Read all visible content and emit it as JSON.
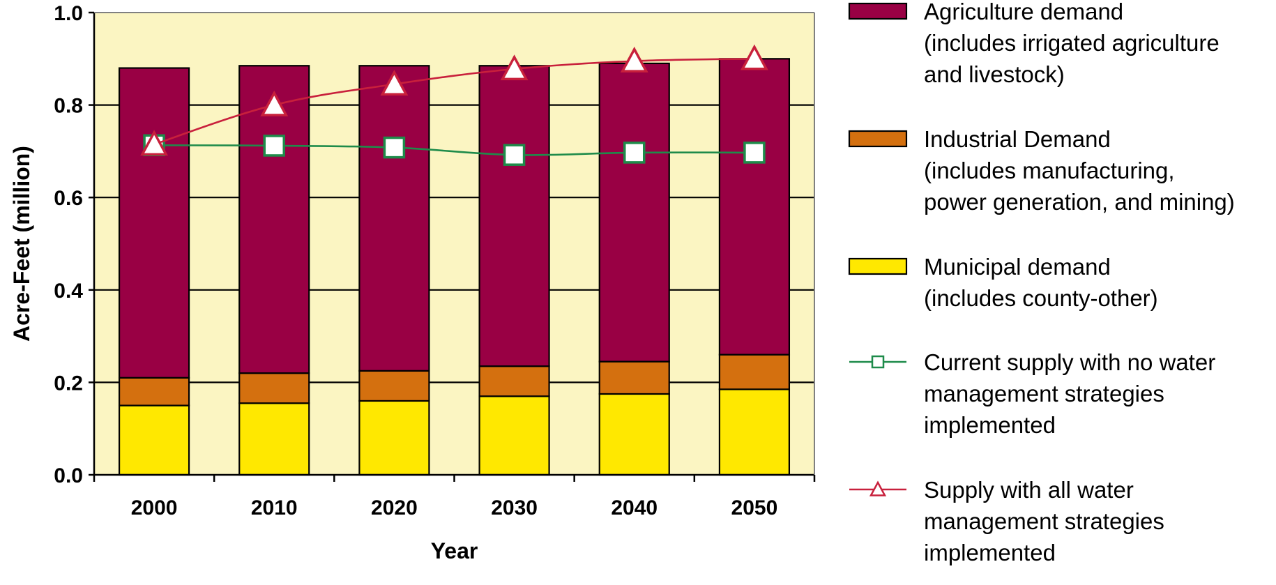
{
  "chart_data": {
    "type": "bar",
    "stacked": true,
    "xlabel": "Year",
    "ylabel": "Acre-Feet (million)",
    "ylim": [
      0.0,
      1.0
    ],
    "yticks": [
      "0.0",
      "0.2",
      "0.4",
      "0.6",
      "0.8",
      "1.0"
    ],
    "categories": [
      "2000",
      "2010",
      "2020",
      "2030",
      "2040",
      "2050"
    ],
    "grid": true,
    "legend_position": "right",
    "bar_series": [
      {
        "name": [
          "Municipal demand",
          "(includes county-other)"
        ],
        "color": "#FFE800",
        "values": [
          0.15,
          0.155,
          0.16,
          0.17,
          0.175,
          0.185
        ]
      },
      {
        "name": [
          "Industrial Demand",
          "(includes manufacturing,",
          "power generation, and mining)"
        ],
        "color": "#D4700F",
        "values": [
          0.06,
          0.065,
          0.065,
          0.065,
          0.07,
          0.075
        ]
      },
      {
        "name": [
          "Agriculture demand",
          "(includes irrigated agriculture",
          "and livestock)"
        ],
        "color": "#990044",
        "values": [
          0.67,
          0.665,
          0.66,
          0.65,
          0.645,
          0.64
        ]
      }
    ],
    "line_series": [
      {
        "name": [
          "Current supply with no water",
          "management strategies",
          "implemented"
        ],
        "color": "#1E8B4A",
        "marker": "square",
        "values": [
          0.713,
          0.712,
          0.708,
          0.692,
          0.697,
          0.697
        ]
      },
      {
        "name": [
          "Supply with all water",
          "management strategies",
          "implemented"
        ],
        "color": "#C8203C",
        "marker": "triangle",
        "values": [
          0.715,
          0.8,
          0.845,
          0.878,
          0.895,
          0.9
        ]
      }
    ],
    "plot_background": "#FBF5C2"
  }
}
